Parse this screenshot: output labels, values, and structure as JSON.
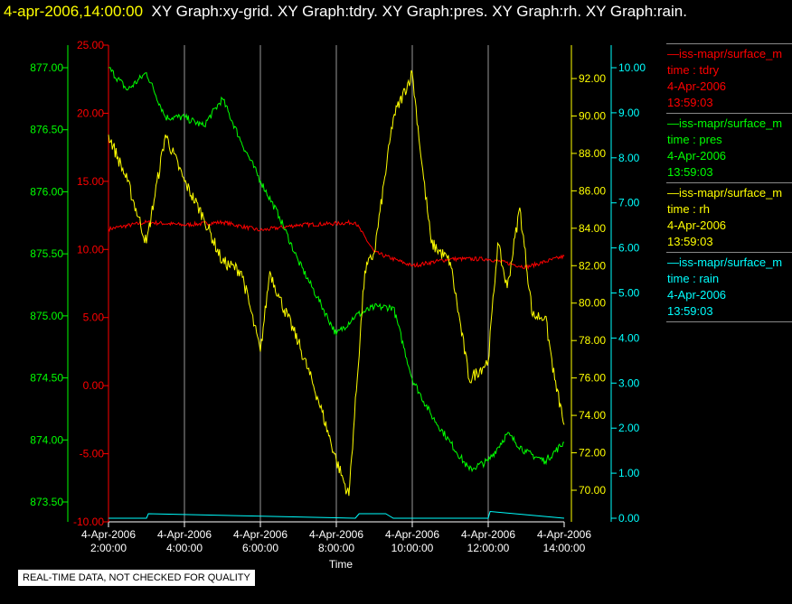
{
  "header": {
    "timestamp": "4-apr-2006,14:00:00",
    "titles": "XY Graph:xy-grid.  XY Graph:tdry.  XY Graph:pres.  XY Graph:rh.  XY Graph:rain."
  },
  "legend": [
    {
      "name": "iss-mapr/surface_m",
      "label": "time : tdry",
      "date": "4-Apr-2006",
      "time": "13:59:03",
      "color": "#ff0000"
    },
    {
      "name": "iss-mapr/surface_m",
      "label": "time : pres",
      "date": "4-Apr-2006",
      "time": "13:59:03",
      "color": "#00ff00"
    },
    {
      "name": "iss-mapr/surface_m",
      "label": "time : rh",
      "date": "4-Apr-2006",
      "time": "13:59:03",
      "color": "#ffff00"
    },
    {
      "name": "iss-mapr/surface_m",
      "label": "time : rain",
      "date": "4-Apr-2006",
      "time": "13:59:03",
      "color": "#00ffff"
    }
  ],
  "note": "REAL-TIME DATA, NOT CHECKED FOR QUALITY",
  "chart_data": {
    "type": "line",
    "xlabel": "Time",
    "x_range_hours": [
      2,
      14
    ],
    "x_ticks": [
      {
        "date": "4-Apr-2006",
        "time": "2:00:00"
      },
      {
        "date": "4-Apr-2006",
        "time": "4:00:00"
      },
      {
        "date": "4-Apr-2006",
        "time": "6:00:00"
      },
      {
        "date": "4-Apr-2006",
        "time": "8:00:00"
      },
      {
        "date": "4-Apr-2006",
        "time": "10:00:00"
      },
      {
        "date": "4-Apr-2006",
        "time": "12:00:00"
      },
      {
        "date": "4-Apr-2006",
        "time": "14:00:00"
      }
    ],
    "axes": {
      "pres": {
        "color": "#00ff00",
        "range": [
          873.5,
          877.0
        ],
        "ticks": [
          "873.50",
          "874.00",
          "874.50",
          "875.00",
          "875.50",
          "876.00",
          "876.50",
          "877.00"
        ]
      },
      "tdry": {
        "color": "#ff0000",
        "range": [
          -10,
          25
        ],
        "ticks": [
          "-10.00",
          "-5.00",
          "0.00",
          "5.00",
          "10.00",
          "15.00",
          "20.00",
          "25.00"
        ]
      },
      "rh": {
        "color": "#ffff00",
        "range": [
          69,
          93
        ],
        "ticks": [
          "70.00",
          "72.00",
          "74.00",
          "76.00",
          "78.00",
          "80.00",
          "82.00",
          "84.00",
          "86.00",
          "88.00",
          "90.00",
          "92.00"
        ]
      },
      "rain": {
        "color": "#00ffff",
        "range": [
          0,
          10
        ],
        "ticks": [
          "0.00",
          "1.00",
          "2.00",
          "3.00",
          "4.00",
          "5.00",
          "6.00",
          "7.00",
          "8.00",
          "9.00",
          "10.00"
        ]
      }
    },
    "series": [
      {
        "name": "tdry",
        "axis": "tdry",
        "x": [
          2,
          3,
          4,
          5,
          6,
          7,
          8,
          8.5,
          9,
          10,
          11,
          12,
          13,
          14
        ],
        "y": [
          11.5,
          12.0,
          11.8,
          12.0,
          11.4,
          11.8,
          11.9,
          12.0,
          9.8,
          8.8,
          9.3,
          9.3,
          8.7,
          9.5
        ]
      },
      {
        "name": "pres",
        "axis": "pres",
        "x": [
          2,
          2.5,
          3,
          3.5,
          4,
          4.5,
          5,
          5.5,
          6,
          6.5,
          7,
          7.5,
          8,
          8.5,
          9,
          9.5,
          10,
          10.5,
          11,
          11.5,
          12,
          12.5,
          13,
          13.5,
          14
        ],
        "y": [
          877.0,
          876.82,
          876.96,
          876.6,
          876.6,
          876.53,
          876.75,
          876.4,
          876.09,
          875.8,
          875.44,
          875.15,
          874.85,
          875.0,
          875.07,
          875.07,
          874.49,
          874.2,
          873.98,
          873.76,
          873.83,
          874.05,
          873.9,
          873.83,
          873.98
        ]
      },
      {
        "name": "rh",
        "axis": "rh",
        "x": [
          2,
          2.5,
          3,
          3.5,
          4,
          4.5,
          5,
          5.5,
          6,
          6.25,
          6.5,
          7,
          7.5,
          8,
          8.33,
          8.75,
          9,
          9.5,
          10,
          10.25,
          10.5,
          11,
          11.5,
          12,
          12.25,
          12.5,
          12.83,
          13.17,
          13.5,
          13.75,
          14
        ],
        "y": [
          89.0,
          86.5,
          83.2,
          89.0,
          86.5,
          84.6,
          82.2,
          81.7,
          77.4,
          81.7,
          80.3,
          77.9,
          75.0,
          71.6,
          69.7,
          81.7,
          82.7,
          89.9,
          92.3,
          87.5,
          83.2,
          82.2,
          75.9,
          76.9,
          83.2,
          80.8,
          85.1,
          79.3,
          79.3,
          75.9,
          73.5
        ]
      },
      {
        "name": "rain",
        "axis": "rain",
        "x": [
          2,
          3,
          3.05,
          8.5,
          8.6,
          9,
          9.3,
          9.5,
          12,
          12.05,
          14
        ],
        "y": [
          0,
          0,
          0.1,
          0,
          0.1,
          0.1,
          0.1,
          0,
          0,
          0.15,
          0
        ]
      }
    ]
  }
}
